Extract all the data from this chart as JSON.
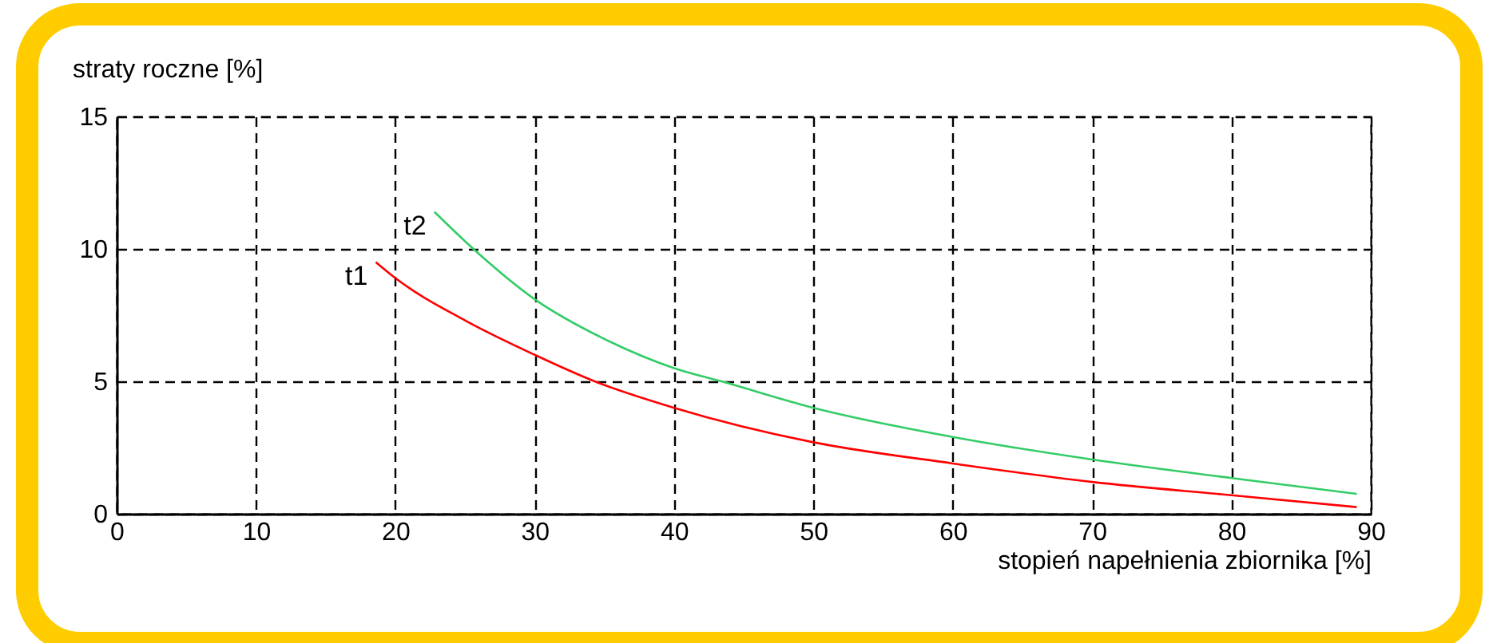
{
  "chart_data": {
    "type": "line",
    "xlabel": "stopień napełnienia zbiornika [%]",
    "ylabel": "straty roczne [%]",
    "xlim": [
      0,
      90
    ],
    "xticks": [
      0,
      10,
      20,
      30,
      40,
      50,
      60,
      70,
      80,
      90
    ],
    "ylim": [
      0,
      15
    ],
    "yticks": [
      0,
      5,
      10,
      15
    ],
    "grid": true,
    "line_style": "solid",
    "series": [
      {
        "name": "t1",
        "color": "#ff0000",
        "x": [
          18.6,
          20,
          25,
          30,
          34.3,
          40,
          50,
          60,
          70,
          80,
          89
        ],
        "values": [
          9.5,
          8.9,
          7.3,
          6.0,
          5.0,
          4.0,
          2.7,
          1.9,
          1.2,
          0.7,
          0.25
        ]
      },
      {
        "name": "t2",
        "color": "#33cc66",
        "x": [
          22.8,
          25.6,
          30,
          35,
          40,
          43.4,
          50,
          60,
          70,
          80,
          89
        ],
        "values": [
          11.4,
          10.0,
          8.1,
          6.6,
          5.5,
          5.0,
          4.0,
          2.9,
          2.05,
          1.35,
          0.75
        ]
      }
    ]
  }
}
